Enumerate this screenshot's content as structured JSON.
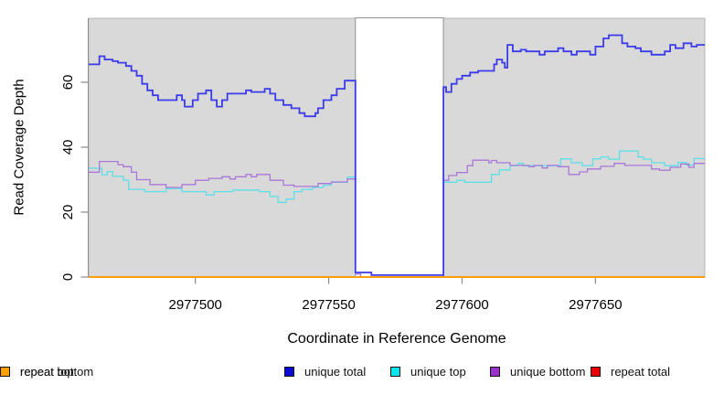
{
  "chart_data": {
    "type": "line",
    "subtype": "step-coverage-plot",
    "title": "",
    "xlabel": "Coordinate in Reference Genome",
    "ylabel": "Read Coverage Depth",
    "xlim": [
      2977460,
      2977691
    ],
    "ylim": [
      0,
      79.7
    ],
    "x_ticks": [
      2977500,
      2977550,
      2977600,
      2977650
    ],
    "x_tick_labels": [
      "2977500",
      "2977550",
      "2977600",
      "2977650"
    ],
    "y_ticks": [
      0,
      20,
      40,
      60
    ],
    "y_tick_labels": [
      "0",
      "20",
      "40",
      "60"
    ],
    "grid": false,
    "panel_bg": "#d9d9d9",
    "panel_border": "#b5b5b5",
    "axis_line_color": "#8f8f8f",
    "tick_color": "#8a8a8a",
    "gap_region": {
      "start": 2977560,
      "end": 2977593,
      "fill": "#ffffff",
      "border": "#909090"
    },
    "legend_position": "bottom",
    "legend": [
      {
        "label": "unique total",
        "color": "#0a0ad2"
      },
      {
        "label": "unique top",
        "color": "#00e6ef"
      },
      {
        "label": "unique bottom",
        "color": "#9932cc"
      },
      {
        "label": "repeat total",
        "color": "#ea0000"
      },
      {
        "label": "repeat top",
        "color": "#f4f400"
      },
      {
        "label": "repeat bottom",
        "color": "#ffa000"
      }
    ],
    "series": [
      {
        "name": "unique total",
        "line_color": "#3b3bea",
        "line_width": 1.8,
        "draw_order": 3,
        "points": [
          [
            2977460,
            65.5
          ],
          [
            2977464,
            68
          ],
          [
            2977466,
            67
          ],
          [
            2977469,
            66.5
          ],
          [
            2977471,
            66
          ],
          [
            2977474,
            65
          ],
          [
            2977476,
            63.5
          ],
          [
            2977478,
            62
          ],
          [
            2977480,
            59.5
          ],
          [
            2977482,
            57.5
          ],
          [
            2977484,
            56
          ],
          [
            2977486,
            54.5
          ],
          [
            2977493,
            56
          ],
          [
            2977495,
            54.5
          ],
          [
            2977496,
            52.5
          ],
          [
            2977499,
            54.5
          ],
          [
            2977501,
            56.5
          ],
          [
            2977504,
            57.5
          ],
          [
            2977506,
            54.5
          ],
          [
            2977508,
            52.5
          ],
          [
            2977510,
            54.5
          ],
          [
            2977512,
            56.5
          ],
          [
            2977519,
            57.5
          ],
          [
            2977521,
            57
          ],
          [
            2977526,
            58
          ],
          [
            2977528,
            56.5
          ],
          [
            2977530,
            54.5
          ],
          [
            2977533,
            53
          ],
          [
            2977536,
            52
          ],
          [
            2977539,
            50.5
          ],
          [
            2977541,
            49.5
          ],
          [
            2977545,
            50.5
          ],
          [
            2977546,
            52
          ],
          [
            2977548,
            54.5
          ],
          [
            2977551,
            56
          ],
          [
            2977553,
            58
          ],
          [
            2977556,
            60.5
          ],
          [
            2977560,
            1.4
          ],
          [
            2977566,
            0.6
          ],
          [
            2977593,
            58.5
          ],
          [
            2977594,
            57
          ],
          [
            2977596,
            59.5
          ],
          [
            2977598,
            61
          ],
          [
            2977600,
            62
          ],
          [
            2977603,
            63
          ],
          [
            2977606,
            63.5
          ],
          [
            2977612,
            65.5
          ],
          [
            2977613,
            67
          ],
          [
            2977615,
            66
          ],
          [
            2977616,
            64.5
          ],
          [
            2977617,
            71.5
          ],
          [
            2977619,
            69.5
          ],
          [
            2977622,
            70
          ],
          [
            2977624,
            69.5
          ],
          [
            2977629,
            68.5
          ],
          [
            2977631,
            69.5
          ],
          [
            2977636,
            70.5
          ],
          [
            2977638,
            69.5
          ],
          [
            2977641,
            68.5
          ],
          [
            2977643,
            69.5
          ],
          [
            2977648,
            68.5
          ],
          [
            2977650,
            71
          ],
          [
            2977653,
            73.5
          ],
          [
            2977655,
            74.5
          ],
          [
            2977660,
            72
          ],
          [
            2977662,
            71
          ],
          [
            2977665,
            70.5
          ],
          [
            2977667,
            69.5
          ],
          [
            2977671,
            68.5
          ],
          [
            2977676,
            69.5
          ],
          [
            2977678,
            71.5
          ],
          [
            2977680,
            70.5
          ],
          [
            2977683,
            72
          ],
          [
            2977686,
            71
          ],
          [
            2977688,
            71.5
          ],
          [
            2977691,
            71.5
          ]
        ]
      },
      {
        "name": "unique top",
        "line_color": "#5ddfe8",
        "line_width": 1.3,
        "draw_order": 1,
        "points": [
          [
            2977460,
            33.5
          ],
          [
            2977465,
            31.5
          ],
          [
            2977467,
            32.5
          ],
          [
            2977469,
            31
          ],
          [
            2977473,
            29.8
          ],
          [
            2977475,
            27
          ],
          [
            2977481,
            26.3
          ],
          [
            2977489,
            27.2
          ],
          [
            2977495,
            26.3
          ],
          [
            2977504,
            25.3
          ],
          [
            2977507,
            26.3
          ],
          [
            2977514,
            26.8
          ],
          [
            2977524,
            26.3
          ],
          [
            2977528,
            24.8
          ],
          [
            2977531,
            23
          ],
          [
            2977534,
            24
          ],
          [
            2977537,
            26.3
          ],
          [
            2977540,
            27
          ],
          [
            2977544,
            27.6
          ],
          [
            2977548,
            28.3
          ],
          [
            2977551,
            29.2
          ],
          [
            2977557,
            30.8
          ],
          [
            2977560,
            0
          ],
          [
            2977593,
            29.2
          ],
          [
            2977598,
            29.8
          ],
          [
            2977601,
            29.2
          ],
          [
            2977611,
            31.6
          ],
          [
            2977614,
            33
          ],
          [
            2977618,
            34.3
          ],
          [
            2977621,
            35
          ],
          [
            2977623,
            34.3
          ],
          [
            2977637,
            36.4
          ],
          [
            2977641,
            35.2
          ],
          [
            2977645,
            34.3
          ],
          [
            2977649,
            36.4
          ],
          [
            2977652,
            37
          ],
          [
            2977655,
            36.3
          ],
          [
            2977659,
            38.8
          ],
          [
            2977666,
            37
          ],
          [
            2977668,
            36.3
          ],
          [
            2977671,
            35.2
          ],
          [
            2977676,
            34.3
          ],
          [
            2977681,
            35.3
          ],
          [
            2977684,
            34.5
          ],
          [
            2977687,
            36.5
          ],
          [
            2977691,
            36.5
          ]
        ]
      },
      {
        "name": "unique bottom",
        "line_color": "#aa77d9",
        "line_width": 1.3,
        "draw_order": 2,
        "points": [
          [
            2977460,
            32.3
          ],
          [
            2977464,
            35.6
          ],
          [
            2977471,
            34.6
          ],
          [
            2977473,
            34
          ],
          [
            2977476,
            32.3
          ],
          [
            2977478,
            30
          ],
          [
            2977483,
            28.5
          ],
          [
            2977489,
            27.6
          ],
          [
            2977495,
            28.5
          ],
          [
            2977500,
            29.8
          ],
          [
            2977505,
            30.4
          ],
          [
            2977510,
            30.9
          ],
          [
            2977513,
            30.2
          ],
          [
            2977515,
            30.9
          ],
          [
            2977519,
            31.6
          ],
          [
            2977521,
            30.9
          ],
          [
            2977523,
            31.6
          ],
          [
            2977528,
            29.8
          ],
          [
            2977533,
            28.3
          ],
          [
            2977537,
            27.9
          ],
          [
            2977546,
            28.8
          ],
          [
            2977551,
            29.3
          ],
          [
            2977557,
            30.2
          ],
          [
            2977560,
            0.9
          ],
          [
            2977562,
            0
          ],
          [
            2977593,
            29.8
          ],
          [
            2977595,
            31.3
          ],
          [
            2977598,
            32.2
          ],
          [
            2977602,
            34.3
          ],
          [
            2977604,
            36
          ],
          [
            2977610,
            35.2
          ],
          [
            2977611,
            35.9
          ],
          [
            2977613,
            35.2
          ],
          [
            2977618,
            34.4
          ],
          [
            2977625,
            34
          ],
          [
            2977627,
            34.4
          ],
          [
            2977630,
            33.6
          ],
          [
            2977632,
            34.4
          ],
          [
            2977636,
            34
          ],
          [
            2977640,
            31.6
          ],
          [
            2977644,
            32.4
          ],
          [
            2977647,
            33.3
          ],
          [
            2977652,
            34.1
          ],
          [
            2977657,
            35
          ],
          [
            2977661,
            34.4
          ],
          [
            2977671,
            33.3
          ],
          [
            2977674,
            32.9
          ],
          [
            2977678,
            33.8
          ],
          [
            2977682,
            34.8
          ],
          [
            2977685,
            33.8
          ],
          [
            2977687,
            35
          ],
          [
            2977691,
            35
          ]
        ]
      },
      {
        "name": "repeat total",
        "line_color": "#e60000",
        "line_width": 1.4,
        "draw_order": 4,
        "points": [
          [
            2977460,
            0
          ],
          [
            2977691,
            0
          ]
        ]
      },
      {
        "name": "repeat top",
        "line_color": "#f0f000",
        "line_width": 1.4,
        "draw_order": 5,
        "points": [
          [
            2977460,
            0
          ],
          [
            2977691,
            0
          ]
        ]
      },
      {
        "name": "repeat bottom",
        "line_color": "#ff9e00",
        "line_width": 2,
        "draw_order": 6,
        "points": [
          [
            2977460,
            0
          ],
          [
            2977691,
            0
          ]
        ]
      }
    ]
  }
}
